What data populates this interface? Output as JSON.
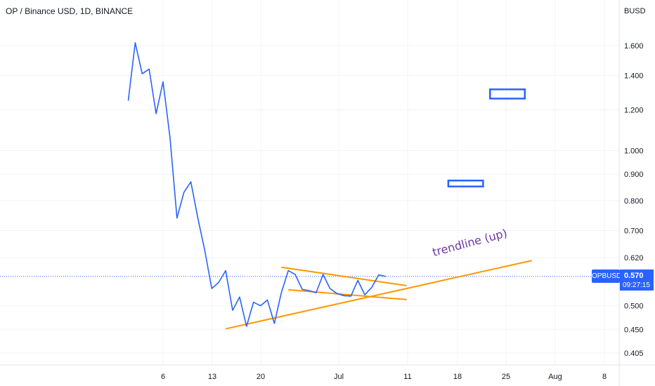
{
  "chart_title": "OP / Binance USD, 1D, BINANCE",
  "currency_label": "BUSD",
  "symbol_tag": "OPBUSD",
  "current_price": "0.570",
  "countdown": "09:27:15",
  "trendline_label": "trendline (up)",
  "colors": {
    "price_line": "#2962ff",
    "drawing": "#ff9800",
    "label": "#6a37a8",
    "grid": "#f0f3fa",
    "axis_text": "#131722"
  },
  "chart_data": {
    "type": "line",
    "scale": "log",
    "grid": true,
    "x_axis": {
      "ticks": [
        "6",
        "13",
        "20",
        "Jul",
        "11",
        "18",
        "25",
        "Aug",
        "8"
      ]
    },
    "y_axis": {
      "ticks": [
        "1.600",
        "1.400",
        "1.200",
        "1.000",
        "0.900",
        "0.800",
        "0.700",
        "0.620",
        "0.500",
        "0.450",
        "0.405"
      ],
      "range": [
        0.385,
        1.9
      ]
    },
    "series": [
      {
        "values": [
          {
            "x": "2022-06-01",
            "y": 1.25
          },
          {
            "x": "2022-06-02",
            "y": 1.62
          },
          {
            "x": "2022-06-03",
            "y": 1.41
          },
          {
            "x": "2022-06-04",
            "y": 1.44
          },
          {
            "x": "2022-06-05",
            "y": 1.18
          },
          {
            "x": "2022-06-06",
            "y": 1.36
          },
          {
            "x": "2022-06-07",
            "y": 1.06
          },
          {
            "x": "2022-06-08",
            "y": 0.74
          },
          {
            "x": "2022-06-09",
            "y": 0.83
          },
          {
            "x": "2022-06-10",
            "y": 0.87
          },
          {
            "x": "2022-06-11",
            "y": 0.74
          },
          {
            "x": "2022-06-12",
            "y": 0.64
          },
          {
            "x": "2022-06-13",
            "y": 0.54
          },
          {
            "x": "2022-06-14",
            "y": 0.555
          },
          {
            "x": "2022-06-15",
            "y": 0.585
          },
          {
            "x": "2022-06-16",
            "y": 0.49
          },
          {
            "x": "2022-06-17",
            "y": 0.52
          },
          {
            "x": "2022-06-18",
            "y": 0.456
          },
          {
            "x": "2022-06-19",
            "y": 0.508
          },
          {
            "x": "2022-06-20",
            "y": 0.5
          },
          {
            "x": "2022-06-21",
            "y": 0.513
          },
          {
            "x": "2022-06-22",
            "y": 0.462
          },
          {
            "x": "2022-06-23",
            "y": 0.53
          },
          {
            "x": "2022-06-24",
            "y": 0.585
          },
          {
            "x": "2022-06-25",
            "y": 0.575
          },
          {
            "x": "2022-06-26",
            "y": 0.538
          },
          {
            "x": "2022-06-27",
            "y": 0.535
          },
          {
            "x": "2022-06-28",
            "y": 0.53
          },
          {
            "x": "2022-06-29",
            "y": 0.575
          },
          {
            "x": "2022-06-30",
            "y": 0.54
          },
          {
            "x": "2022-07-01",
            "y": 0.528
          },
          {
            "x": "2022-07-02",
            "y": 0.523
          },
          {
            "x": "2022-07-03",
            "y": 0.522
          },
          {
            "x": "2022-07-04",
            "y": 0.56
          },
          {
            "x": "2022-07-05",
            "y": 0.525
          },
          {
            "x": "2022-07-06",
            "y": 0.543
          },
          {
            "x": "2022-07-07",
            "y": 0.574
          },
          {
            "x": "2022-07-08",
            "y": 0.57
          }
        ]
      }
    ],
    "drawings": [
      {
        "type": "trendline",
        "from": {
          "x": "2022-06-15",
          "y": 0.451
        },
        "to": {
          "x": "2022-07-29",
          "y": 0.612
        }
      },
      {
        "type": "trendline",
        "from": {
          "x": "2022-06-23",
          "y": 0.594
        },
        "to": {
          "x": "2022-07-11",
          "y": 0.547
        }
      },
      {
        "type": "trendline",
        "from": {
          "x": "2022-06-24",
          "y": 0.537
        },
        "to": {
          "x": "2022-07-11",
          "y": 0.514
        }
      },
      {
        "type": "rectangle",
        "from": {
          "x": "2022-07-17",
          "y": 0.875
        },
        "to": {
          "x": "2022-07-22",
          "y": 0.852
        }
      },
      {
        "type": "rectangle",
        "from": {
          "x": "2022-07-23",
          "y": 1.315
        },
        "to": {
          "x": "2022-07-28",
          "y": 1.262
        }
      }
    ],
    "current_price_line": 0.57
  }
}
